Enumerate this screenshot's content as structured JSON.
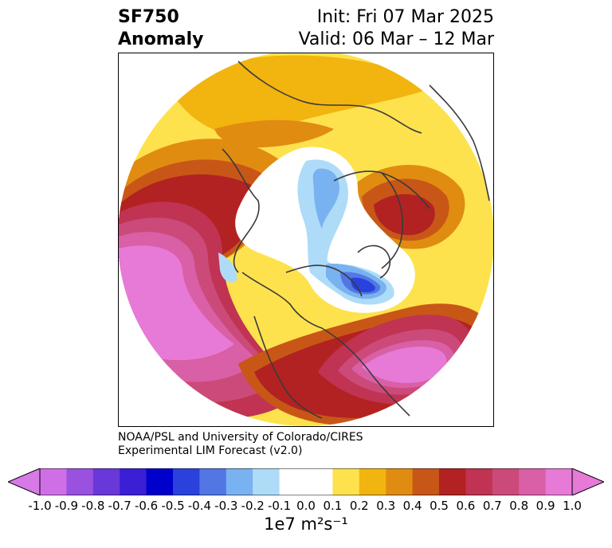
{
  "title": {
    "left_line1": "SF750",
    "left_line2": "Anomaly",
    "right_line1": "Init: Fri 07 Mar 2025",
    "right_line2": "Valid: 06 Mar – 12 Mar"
  },
  "credit": {
    "line1": "NOAA/PSL and University of Colorado/CIRES",
    "line2": "Experimental LIM Forecast (v2.0)"
  },
  "colorbar": {
    "ticks": [
      "-1.0",
      "-0.9",
      "-0.8",
      "-0.7",
      "-0.6",
      "-0.5",
      "-0.4",
      "-0.3",
      "-0.2",
      "-0.1",
      "0.0",
      "0.1",
      "0.2",
      "0.3",
      "0.4",
      "0.5",
      "0.6",
      "0.7",
      "0.8",
      "0.9",
      "1.0"
    ],
    "colors": [
      "#cf6fe6",
      "#9a51e0",
      "#6a38d8",
      "#3a1fd5",
      "#0000cc",
      "#2a42db",
      "#5277e5",
      "#79b2f0",
      "#aedcf8",
      "#ffffff",
      "#ffffff",
      "#fde24e",
      "#f2b40f",
      "#e08c11",
      "#c85717",
      "#b22222",
      "#c03352",
      "#cb4a7a",
      "#d95fa6",
      "#e67ad6"
    ],
    "under_color": "#d77ae8",
    "over_color": "#e67ad6",
    "unit_label": "1e7 m²s⁻¹"
  },
  "map": {
    "projection": "north-polar-stereographic",
    "colors": {
      "light_yellow": "#fde24e",
      "yellow": "#f2b40f",
      "orange": "#e08c11",
      "dark_orange": "#c85717",
      "red": "#b22222",
      "crimson": "#c03352",
      "rose": "#cb4a7a",
      "pink": "#d95fa6",
      "magenta": "#e67ad6",
      "light_blue": "#aedcf8",
      "blue1": "#79b2f0",
      "blue2": "#5277e5",
      "blue3": "#2a42db",
      "coastline": "#3a3a3a"
    }
  }
}
